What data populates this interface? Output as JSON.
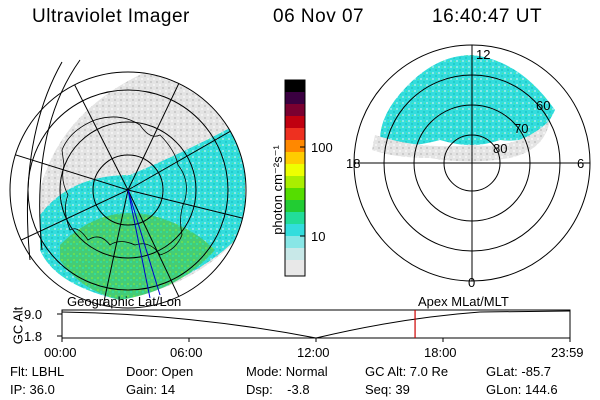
{
  "header": {
    "instrument": "Ultraviolet Imager",
    "date": "06 Nov 07",
    "time": "16:40:47 UT"
  },
  "left_panel": {
    "caption": "Geographic Lat/Lon"
  },
  "right_panel": {
    "caption": "Apex MLat/MLT",
    "mlt_labels": {
      "top": "12",
      "left": "18",
      "right": "6",
      "bottom": "0"
    },
    "lat_labels": [
      "60",
      "70",
      "80"
    ]
  },
  "colorbar": {
    "label": "photon cm⁻²s⁻¹",
    "ticks": [
      "100",
      "10"
    ],
    "colors": [
      "#000000",
      "#2a0030",
      "#4a0040",
      "#7a0020",
      "#b00000",
      "#e00020",
      "#ff6600",
      "#ffaa00",
      "#ffee00",
      "#aaff00",
      "#55dd00",
      "#11cc44",
      "#22ddaa",
      "#33dddd",
      "#88dddd",
      "#cccccc",
      "#e6e6e6"
    ]
  },
  "timeline": {
    "ylabel": "GC Alt",
    "y_ticks": [
      "9.0",
      "1.8"
    ],
    "x_ticks": [
      "00:00",
      "06:00",
      "12:00",
      "18:00",
      "23:59"
    ],
    "current_time_fraction": 0.695
  },
  "footer": {
    "row1": [
      {
        "label": "Flt: LBHL"
      },
      {
        "label": "Door: Open"
      },
      {
        "label": "Mode: Normal"
      },
      {
        "label": "GC Alt: 7.0 Re"
      },
      {
        "label": "GLat: -85.7"
      }
    ],
    "row2": [
      {
        "label": "IP: 36.0"
      },
      {
        "label": "Gain: 14"
      },
      {
        "label": "Dsp:    -3.8"
      },
      {
        "label": "Seq: 39"
      },
      {
        "label": "GLon: 144.6"
      }
    ]
  },
  "colors": {
    "emission_cyan": "#33dddd",
    "emission_green": "#44cc66",
    "emission_grey": "#dddddd",
    "time_marker": "#cc0000"
  }
}
